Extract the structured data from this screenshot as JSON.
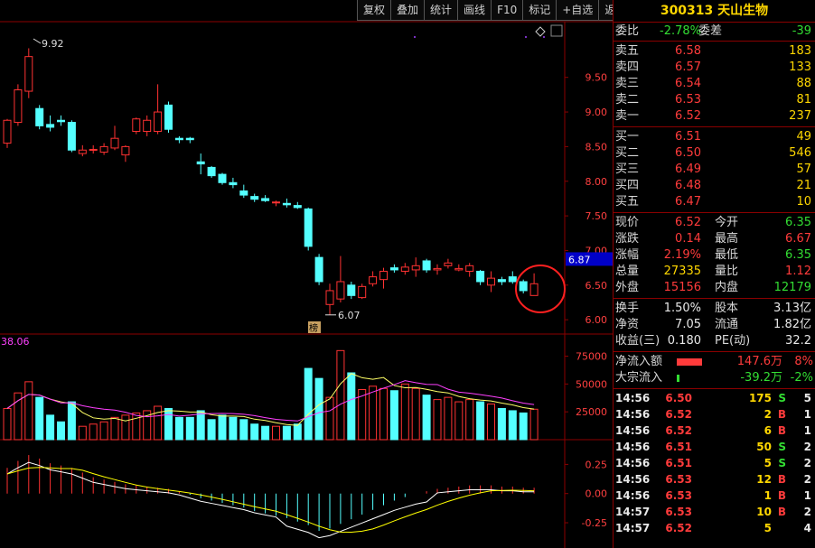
{
  "toolbar": [
    "复权",
    "叠加",
    "统计",
    "画线",
    "F10",
    "标记",
    "+自选",
    "返回"
  ],
  "stock": {
    "code": "300313",
    "name": "天山生物"
  },
  "weibi": {
    "label1": "委比",
    "value1": "-2.78%",
    "label2": "委差",
    "value2": "-39"
  },
  "sell": [
    {
      "label": "卖五",
      "price": "6.58",
      "vol": "183"
    },
    {
      "label": "卖四",
      "price": "6.57",
      "vol": "133"
    },
    {
      "label": "卖三",
      "price": "6.54",
      "vol": "88"
    },
    {
      "label": "卖二",
      "price": "6.53",
      "vol": "81"
    },
    {
      "label": "卖一",
      "price": "6.52",
      "vol": "237"
    }
  ],
  "buy": [
    {
      "label": "买一",
      "price": "6.51",
      "vol": "49"
    },
    {
      "label": "买二",
      "price": "6.50",
      "vol": "546"
    },
    {
      "label": "买三",
      "price": "6.49",
      "vol": "57"
    },
    {
      "label": "买四",
      "price": "6.48",
      "vol": "21"
    },
    {
      "label": "买五",
      "price": "6.47",
      "vol": "10"
    }
  ],
  "quote": [
    {
      "l1": "现价",
      "v1": "6.52",
      "c1": "red",
      "l2": "今开",
      "v2": "6.35",
      "c2": "green"
    },
    {
      "l1": "涨跌",
      "v1": "0.14",
      "c1": "red",
      "l2": "最高",
      "v2": "6.67",
      "c2": "red"
    },
    {
      "l1": "涨幅",
      "v1": "2.19%",
      "c1": "red",
      "l2": "最低",
      "v2": "6.35",
      "c2": "green"
    },
    {
      "l1": "总量",
      "v1": "27335",
      "c1": "yellow",
      "l2": "量比",
      "v2": "1.12",
      "c2": "red"
    },
    {
      "l1": "外盘",
      "v1": "15156",
      "c1": "red",
      "l2": "内盘",
      "v2": "12179",
      "c2": "green"
    }
  ],
  "fundamental": [
    {
      "l1": "换手",
      "v1": "1.50%",
      "l2": "股本",
      "v2": "3.13亿"
    },
    {
      "l1": "净资",
      "v1": "7.05",
      "l2": "流通",
      "v2": "1.82亿"
    },
    {
      "l1": "收益(三)",
      "v1": "0.180",
      "l2": "PE(动)",
      "v2": "32.2"
    }
  ],
  "flow": [
    {
      "label": "净流入额",
      "value": "147.6万",
      "pct": "8%",
      "color": "#ff3b3b",
      "bar": 0.7
    },
    {
      "label": "大宗流入",
      "value": "-39.2万",
      "pct": "-2%",
      "color": "#33dd33",
      "bar": 0.08
    }
  ],
  "trades": [
    {
      "time": "14:56",
      "price": "6.50",
      "vol": "175",
      "side": "S",
      "n": "5",
      "pc": "red"
    },
    {
      "time": "14:56",
      "price": "6.52",
      "vol": "2",
      "side": "B",
      "n": "1",
      "pc": "red"
    },
    {
      "time": "14:56",
      "price": "6.52",
      "vol": "6",
      "side": "B",
      "n": "1",
      "pc": "red"
    },
    {
      "time": "14:56",
      "price": "6.51",
      "vol": "50",
      "side": "S",
      "n": "2",
      "pc": "red"
    },
    {
      "time": "14:56",
      "price": "6.51",
      "vol": "5",
      "side": "S",
      "n": "2",
      "pc": "red"
    },
    {
      "time": "14:56",
      "price": "6.53",
      "vol": "12",
      "side": "B",
      "n": "2",
      "pc": "red"
    },
    {
      "time": "14:56",
      "price": "6.53",
      "vol": "1",
      "side": "B",
      "n": "1",
      "pc": "red"
    },
    {
      "time": "14:57",
      "price": "6.53",
      "vol": "10",
      "side": "B",
      "n": "2",
      "pc": "red"
    },
    {
      "time": "14:57",
      "price": "6.52",
      "vol": "5",
      "side": "",
      "n": "4",
      "pc": "red"
    }
  ],
  "chart_data": {
    "type": "candlestick",
    "price_axis": {
      "ticks": [
        "9.50",
        "9.00",
        "8.50",
        "8.00",
        "7.50",
        "7.00",
        "6.50",
        "6.00"
      ],
      "range": [
        5.95,
        10.2
      ],
      "current_label": "6.87"
    },
    "annotations": {
      "high": "9.92",
      "low": "6.07",
      "marker": "榜"
    },
    "volume_axis": {
      "ticks": [
        "75000",
        "50000",
        "25000"
      ],
      "range": [
        0,
        90000
      ],
      "corner_label": "38.06"
    },
    "macd_axis": {
      "ticks": [
        "0.25",
        "0.00",
        "-0.25"
      ],
      "range": [
        -0.42,
        0.4
      ]
    },
    "candles": [
      {
        "o": 8.55,
        "h": 8.9,
        "l": 8.48,
        "c": 8.88,
        "v": 28000
      },
      {
        "o": 8.85,
        "h": 9.4,
        "l": 8.8,
        "c": 9.32,
        "v": 42000
      },
      {
        "o": 9.3,
        "h": 9.92,
        "l": 9.2,
        "c": 9.8,
        "v": 52000
      },
      {
        "o": 9.05,
        "h": 9.1,
        "l": 8.75,
        "c": 8.8,
        "v": 38000
      },
      {
        "o": 8.82,
        "h": 8.95,
        "l": 8.72,
        "c": 8.78,
        "v": 22000
      },
      {
        "o": 8.88,
        "h": 8.95,
        "l": 8.8,
        "c": 8.86,
        "v": 16000
      },
      {
        "o": 8.85,
        "h": 8.88,
        "l": 8.42,
        "c": 8.45,
        "v": 34000
      },
      {
        "o": 8.4,
        "h": 8.52,
        "l": 8.36,
        "c": 8.45,
        "v": 12000
      },
      {
        "o": 8.45,
        "h": 8.52,
        "l": 8.4,
        "c": 8.46,
        "v": 14000
      },
      {
        "o": 8.42,
        "h": 8.55,
        "l": 8.38,
        "c": 8.5,
        "v": 16000
      },
      {
        "o": 8.48,
        "h": 8.8,
        "l": 8.45,
        "c": 8.62,
        "v": 20000
      },
      {
        "o": 8.38,
        "h": 8.52,
        "l": 8.28,
        "c": 8.5,
        "v": 22000
      },
      {
        "o": 8.72,
        "h": 8.92,
        "l": 8.68,
        "c": 8.9,
        "v": 24000
      },
      {
        "o": 8.72,
        "h": 8.95,
        "l": 8.65,
        "c": 8.88,
        "v": 26000
      },
      {
        "o": 8.72,
        "h": 9.4,
        "l": 8.68,
        "c": 9.0,
        "v": 30000
      },
      {
        "o": 9.1,
        "h": 9.15,
        "l": 8.7,
        "c": 8.75,
        "v": 28000
      },
      {
        "o": 8.62,
        "h": 8.65,
        "l": 8.55,
        "c": 8.6,
        "v": 20000
      },
      {
        "o": 8.62,
        "h": 8.64,
        "l": 8.55,
        "c": 8.6,
        "v": 20000
      },
      {
        "o": 8.28,
        "h": 8.4,
        "l": 8.1,
        "c": 8.25,
        "v": 26000
      },
      {
        "o": 8.2,
        "h": 8.22,
        "l": 8.05,
        "c": 8.08,
        "v": 18000
      },
      {
        "o": 8.1,
        "h": 8.12,
        "l": 7.95,
        "c": 7.98,
        "v": 22000
      },
      {
        "o": 7.98,
        "h": 8.05,
        "l": 7.9,
        "c": 7.95,
        "v": 20000
      },
      {
        "o": 7.86,
        "h": 7.95,
        "l": 7.76,
        "c": 7.8,
        "v": 18000
      },
      {
        "o": 7.78,
        "h": 7.82,
        "l": 7.7,
        "c": 7.74,
        "v": 14000
      },
      {
        "o": 7.75,
        "h": 7.8,
        "l": 7.7,
        "c": 7.72,
        "v": 12000
      },
      {
        "o": 7.7,
        "h": 7.72,
        "l": 7.64,
        "c": 7.7,
        "v": 12000
      },
      {
        "o": 7.68,
        "h": 7.75,
        "l": 7.62,
        "c": 7.66,
        "v": 12000
      },
      {
        "o": 7.65,
        "h": 7.7,
        "l": 7.6,
        "c": 7.62,
        "v": 14000
      },
      {
        "o": 7.6,
        "h": 7.62,
        "l": 7.0,
        "c": 7.06,
        "v": 64000
      },
      {
        "o": 6.9,
        "h": 6.95,
        "l": 6.5,
        "c": 6.55,
        "v": 55000
      },
      {
        "o": 6.22,
        "h": 6.52,
        "l": 6.07,
        "c": 6.42,
        "v": 38000
      },
      {
        "o": 6.3,
        "h": 6.92,
        "l": 6.25,
        "c": 6.55,
        "v": 80000
      },
      {
        "o": 6.5,
        "h": 6.55,
        "l": 6.3,
        "c": 6.35,
        "v": 60000
      },
      {
        "o": 6.32,
        "h": 6.52,
        "l": 6.3,
        "c": 6.48,
        "v": 45000
      },
      {
        "o": 6.52,
        "h": 6.7,
        "l": 6.48,
        "c": 6.62,
        "v": 48000
      },
      {
        "o": 6.58,
        "h": 6.75,
        "l": 6.45,
        "c": 6.7,
        "v": 46000
      },
      {
        "o": 6.75,
        "h": 6.8,
        "l": 6.68,
        "c": 6.72,
        "v": 44000
      },
      {
        "o": 6.7,
        "h": 6.82,
        "l": 6.65,
        "c": 6.76,
        "v": 50000
      },
      {
        "o": 6.72,
        "h": 6.9,
        "l": 6.62,
        "c": 6.78,
        "v": 46000
      },
      {
        "o": 6.85,
        "h": 6.88,
        "l": 6.68,
        "c": 6.72,
        "v": 40000
      },
      {
        "o": 6.72,
        "h": 6.8,
        "l": 6.65,
        "c": 6.74,
        "v": 36000
      },
      {
        "o": 6.78,
        "h": 6.88,
        "l": 6.74,
        "c": 6.82,
        "v": 38000
      },
      {
        "o": 6.72,
        "h": 6.8,
        "l": 6.7,
        "c": 6.74,
        "v": 34000
      },
      {
        "o": 6.7,
        "h": 6.82,
        "l": 6.62,
        "c": 6.78,
        "v": 36000
      },
      {
        "o": 6.7,
        "h": 6.72,
        "l": 6.5,
        "c": 6.55,
        "v": 34000
      },
      {
        "o": 6.5,
        "h": 6.7,
        "l": 6.4,
        "c": 6.6,
        "v": 32000
      },
      {
        "o": 6.58,
        "h": 6.62,
        "l": 6.5,
        "c": 6.55,
        "v": 28000
      },
      {
        "o": 6.62,
        "h": 6.7,
        "l": 6.52,
        "c": 6.55,
        "v": 26000
      },
      {
        "o": 6.55,
        "h": 6.58,
        "l": 6.38,
        "c": 6.42,
        "v": 24000
      },
      {
        "o": 6.35,
        "h": 6.67,
        "l": 6.35,
        "c": 6.52,
        "v": 27335
      }
    ],
    "macd": [
      0.22,
      0.28,
      0.33,
      0.3,
      0.26,
      0.24,
      0.22,
      0.18,
      0.14,
      0.12,
      0.1,
      0.08,
      0.07,
      0.06,
      0.05,
      0.04,
      0.02,
      -0.01,
      -0.04,
      -0.06,
      -0.08,
      -0.1,
      -0.12,
      -0.15,
      -0.17,
      -0.19,
      -0.21,
      -0.24,
      -0.27,
      -0.32,
      -0.3,
      -0.26,
      -0.22,
      -0.18,
      -0.14,
      -0.1,
      -0.06,
      -0.03,
      0.0,
      0.02,
      0.04,
      0.05,
      0.06,
      0.07,
      0.07,
      0.07,
      0.06,
      0.06,
      0.05,
      0.05
    ]
  }
}
